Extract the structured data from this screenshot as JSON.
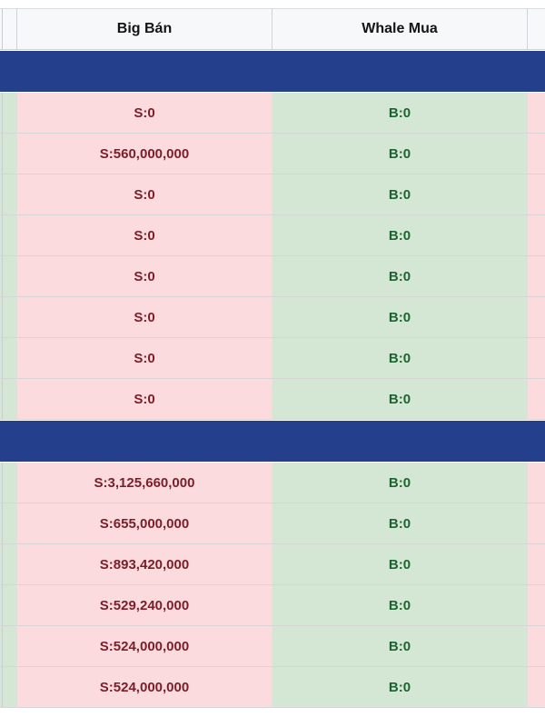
{
  "header": {
    "sell_col": "Big Bán",
    "buy_col": "Whale Mua"
  },
  "sections": [
    {
      "rows": [
        {
          "sell": "S:0",
          "buy": "B:0"
        },
        {
          "sell": "S:560,000,000",
          "buy": "B:0"
        },
        {
          "sell": "S:0",
          "buy": "B:0"
        },
        {
          "sell": "S:0",
          "buy": "B:0"
        },
        {
          "sell": "S:0",
          "buy": "B:0"
        },
        {
          "sell": "S:0",
          "buy": "B:0"
        },
        {
          "sell": "S:0",
          "buy": "B:0"
        },
        {
          "sell": "S:0",
          "buy": "B:0"
        }
      ]
    },
    {
      "rows": [
        {
          "sell": "S:3,125,660,000",
          "buy": "B:0"
        },
        {
          "sell": "S:655,000,000",
          "buy": "B:0"
        },
        {
          "sell": "S:893,420,000",
          "buy": "B:0"
        },
        {
          "sell": "S:529,240,000",
          "buy": "B:0"
        },
        {
          "sell": "S:524,000,000",
          "buy": "B:0"
        },
        {
          "sell": "S:524,000,000",
          "buy": "B:0"
        }
      ]
    }
  ],
  "colors": {
    "section_bar": "#243f8c",
    "sell_bg": "#fbdbde",
    "buy_bg": "#d4e7d5",
    "sell_text": "#7a1e29",
    "buy_text": "#1b6430",
    "header_bg": "#f7f8fa"
  }
}
